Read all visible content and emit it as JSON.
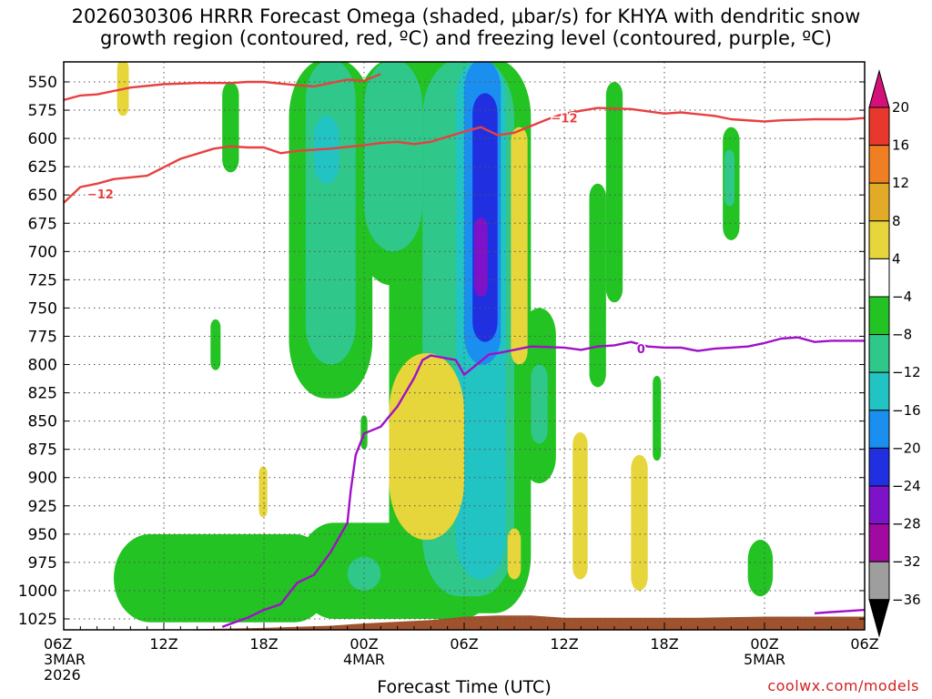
{
  "title": {
    "line1": "2026030306 HRRR Forecast Omega (shaded, μbar/s) for KHYA with dendritic snow",
    "line2": "growth region (contoured, red, ºC) and freezing level (contoured, purple, ºC)"
  },
  "credit": "coolwx.com/models",
  "chart_data": {
    "type": "heatmap",
    "xlabel": "Forecast Time (UTC)",
    "ylabel": "",
    "xlim": [
      0,
      48
    ],
    "ylim": [
      1035,
      530
    ],
    "y_axis": "pressure (hPa), inverted",
    "grid": true,
    "x_ticks": [
      {
        "hour": 0,
        "lines": [
          "06Z",
          "3MAR",
          "2026"
        ]
      },
      {
        "hour": 6,
        "lines": [
          "12Z"
        ]
      },
      {
        "hour": 12,
        "lines": [
          "18Z"
        ]
      },
      {
        "hour": 18,
        "lines": [
          "00Z",
          "4MAR"
        ]
      },
      {
        "hour": 24,
        "lines": [
          "06Z"
        ]
      },
      {
        "hour": 30,
        "lines": [
          "12Z"
        ]
      },
      {
        "hour": 36,
        "lines": [
          "18Z"
        ]
      },
      {
        "hour": 42,
        "lines": [
          "00Z",
          "5MAR"
        ]
      },
      {
        "hour": 48,
        "lines": [
          "06Z"
        ]
      }
    ],
    "y_ticks": [
      550,
      575,
      600,
      625,
      650,
      675,
      700,
      725,
      750,
      775,
      800,
      825,
      850,
      875,
      900,
      925,
      950,
      975,
      1000,
      1025
    ],
    "colorbar": {
      "labels": [
        "20",
        "16",
        "12",
        "8",
        "4",
        "−4",
        "−8",
        "−12",
        "−16",
        "−20",
        "−24",
        "−28",
        "−32",
        "−36"
      ],
      "levels": [
        20,
        16,
        12,
        8,
        4,
        -4,
        -8,
        -12,
        -16,
        -20,
        -24,
        -28,
        -32,
        -36
      ],
      "colors": [
        "#d4107a",
        "#e8382e",
        "#ef7f22",
        "#e2ab27",
        "#e6d53b",
        "#ffffff",
        "#22c322",
        "#2fc78a",
        "#22c3c3",
        "#1a8ff0",
        "#2030e0",
        "#7e12c8",
        "#a00aa0",
        "#9e9e9e",
        "#000000"
      ]
    },
    "contours": [
      {
        "name": "−12",
        "color": "#e84040",
        "lines": [
          [
            [
              0,
              657
            ],
            [
              1,
              643
            ],
            [
              2,
              640
            ],
            [
              3,
              636
            ],
            [
              5,
              633
            ],
            [
              7,
              618
            ],
            [
              9,
              609
            ],
            [
              10,
              607
            ],
            [
              11,
              608
            ],
            [
              12,
              608
            ],
            [
              13,
              613
            ],
            [
              14,
              611
            ],
            [
              16,
              609
            ],
            [
              18,
              606
            ],
            [
              19,
              604
            ],
            [
              20,
              603
            ],
            [
              21,
              605
            ],
            [
              22,
              603
            ],
            [
              24,
              594
            ],
            [
              25,
              590
            ],
            [
              26,
              597
            ],
            [
              27,
              595
            ],
            [
              29,
              583
            ],
            [
              30,
              578
            ],
            [
              32,
              573
            ],
            [
              34,
              574
            ],
            [
              36,
              578
            ],
            [
              37,
              577
            ],
            [
              39,
              580
            ],
            [
              40,
              583
            ],
            [
              42,
              585
            ],
            [
              43,
              584
            ],
            [
              45,
              583
            ],
            [
              47,
              583
            ],
            [
              48,
              582
            ]
          ],
          [
            [
              0,
              566
            ],
            [
              1,
              562
            ],
            [
              2,
              561
            ],
            [
              4,
              555
            ],
            [
              6,
              552
            ],
            [
              8,
              551
            ],
            [
              10,
              551
            ],
            [
              11,
              550
            ],
            [
              12,
              550
            ],
            [
              14,
              553
            ],
            [
              15,
              554
            ],
            [
              16,
              551
            ],
            [
              17,
              548
            ],
            [
              18,
              549
            ],
            [
              19,
              543
            ]
          ]
        ],
        "labels": [
          {
            "hour": 2.2,
            "p": 649,
            "text": "−12"
          },
          {
            "hour": 30,
            "p": 582,
            "text": "−12"
          }
        ]
      },
      {
        "name": "0",
        "color": "#a010c8",
        "lines": [
          [
            [
              9.5,
              1032
            ],
            [
              11,
              1024
            ],
            [
              12,
              1017
            ],
            [
              13,
              1012
            ],
            [
              14,
              993
            ],
            [
              15,
              986
            ],
            [
              16,
              966
            ],
            [
              17,
              940
            ],
            [
              17.2,
              912
            ],
            [
              17.5,
              880
            ],
            [
              18,
              861
            ],
            [
              19,
              855
            ],
            [
              20,
              837
            ],
            [
              21,
              812
            ],
            [
              21.5,
              796
            ],
            [
              22,
              792
            ],
            [
              23.5,
              796
            ],
            [
              24,
              809
            ],
            [
              25,
              797
            ],
            [
              25.5,
              791
            ],
            [
              26,
              790
            ],
            [
              27,
              787
            ],
            [
              28,
              784
            ],
            [
              30,
              785
            ],
            [
              31,
              787
            ],
            [
              32,
              784
            ],
            [
              33,
              783
            ],
            [
              34,
              780
            ],
            [
              35,
              784
            ],
            [
              36,
              785
            ],
            [
              37,
              785
            ],
            [
              38,
              788
            ],
            [
              39,
              786
            ],
            [
              40,
              785
            ],
            [
              41,
              784
            ],
            [
              42,
              781
            ],
            [
              43,
              777
            ],
            [
              44,
              776
            ],
            [
              45,
              780
            ],
            [
              46,
              779
            ],
            [
              47,
              779
            ],
            [
              48,
              779
            ]
          ],
          [
            [
              45,
              1020
            ],
            [
              46,
              1019
            ],
            [
              47,
              1018
            ],
            [
              48,
              1017
            ]
          ]
        ],
        "labels": [
          {
            "hour": 34.6,
            "p": 786,
            "text": "0"
          }
        ]
      }
    ],
    "terrain_top_hPa": {
      "hour": [
        0,
        4,
        8,
        12,
        16,
        18,
        22,
        24,
        26,
        28,
        30,
        34,
        38,
        42,
        48
      ],
      "p": [
        1036,
        1036,
        1034,
        1033,
        1031,
        1029,
        1026,
        1023,
        1022,
        1022,
        1024,
        1024,
        1024,
        1023,
        1023
      ]
    },
    "regions": [
      {
        "color": "#22c322",
        "label": "-4 to -8",
        "t0": 13.5,
        "t1": 18.5,
        "pTop": 530,
        "pBot": 830
      },
      {
        "color": "#22c322",
        "label": "-4 to -8",
        "t0": 17.5,
        "t1": 22.5,
        "pTop": 530,
        "pBot": 730
      },
      {
        "color": "#22c322",
        "label": "-4 to -8",
        "t0": 19.5,
        "t1": 28,
        "pTop": 530,
        "pBot": 1020
      },
      {
        "color": "#22c322",
        "label": "-4 to -8",
        "t0": 3,
        "t1": 16,
        "pTop": 950,
        "pBot": 1028
      },
      {
        "color": "#22c322",
        "label": "-4 to -8",
        "t0": 14,
        "t1": 26,
        "pTop": 940,
        "pBot": 1025
      },
      {
        "color": "#22c322",
        "label": "-4 to -8",
        "t0": 27.5,
        "t1": 29.5,
        "pTop": 750,
        "pBot": 905
      },
      {
        "color": "#22c322",
        "label": "-4 to -8",
        "t0": 9.5,
        "t1": 10.5,
        "pTop": 550,
        "pBot": 630
      },
      {
        "color": "#22c322",
        "label": "-4 to -8",
        "t0": 32.5,
        "t1": 33.5,
        "pTop": 550,
        "pBot": 745
      },
      {
        "color": "#22c322",
        "label": "-4 to -8",
        "t0": 39.5,
        "t1": 40.5,
        "pTop": 590,
        "pBot": 690
      },
      {
        "color": "#22c322",
        "label": "-4 to -8",
        "t0": 31.5,
        "t1": 32.5,
        "pTop": 640,
        "pBot": 820
      },
      {
        "color": "#22c322",
        "label": "-4 to -8",
        "t0": 41,
        "t1": 42.5,
        "pTop": 955,
        "pBot": 1005
      },
      {
        "color": "#22c322",
        "label": "-4 to -8",
        "t0": 8.8,
        "t1": 9.4,
        "pTop": 760,
        "pBot": 805
      },
      {
        "color": "#22c322",
        "label": "-4 to -8",
        "t0": 17.8,
        "t1": 18.2,
        "pTop": 845,
        "pBot": 875
      },
      {
        "color": "#22c322",
        "label": "-4 to -8",
        "t0": 35.3,
        "t1": 35.8,
        "pTop": 810,
        "pBot": 885
      },
      {
        "color": "#2fc78a",
        "label": "-8 to -12",
        "t0": 14.5,
        "t1": 17.5,
        "pTop": 530,
        "pBot": 800
      },
      {
        "color": "#2fc78a",
        "label": "-8 to -12",
        "t0": 18,
        "t1": 21.5,
        "pTop": 530,
        "pBot": 700
      },
      {
        "color": "#2fc78a",
        "label": "-8 to -12",
        "t0": 21.5,
        "t1": 27,
        "pTop": 530,
        "pBot": 1005
      },
      {
        "color": "#2fc78a",
        "label": "-8 to -12",
        "t0": 28,
        "t1": 29,
        "pTop": 800,
        "pBot": 870
      },
      {
        "color": "#2fc78a",
        "label": "-8 to -12",
        "t0": 17,
        "t1": 19,
        "pTop": 970,
        "pBot": 1000
      },
      {
        "color": "#2fc78a",
        "label": "-8 to -12",
        "t0": 39.6,
        "t1": 40.2,
        "pTop": 610,
        "pBot": 660
      },
      {
        "color": "#22c3c3",
        "label": "-12 to -16",
        "t0": 23.5,
        "t1": 26.5,
        "pTop": 530,
        "pBot": 990
      },
      {
        "color": "#22c3c3",
        "label": "-12 to -16",
        "t0": 15,
        "t1": 16.5,
        "pTop": 580,
        "pBot": 640
      },
      {
        "color": "#1a8ff0",
        "label": "-16 to -20",
        "t0": 24,
        "t1": 26.2,
        "pTop": 530,
        "pBot": 800
      },
      {
        "color": "#2030e0",
        "label": "-20 to -24",
        "t0": 24.5,
        "t1": 26,
        "pTop": 560,
        "pBot": 780
      },
      {
        "color": "#7e12c8",
        "label": "-24 to -28",
        "t0": 24.6,
        "t1": 25.4,
        "pTop": 670,
        "pBot": 740
      },
      {
        "color": "#e6d53b",
        "label": "4 to 8",
        "t0": 19.5,
        "t1": 24,
        "pTop": 790,
        "pBot": 955
      },
      {
        "color": "#e6d53b",
        "label": "4 to 8",
        "t0": 26.8,
        "t1": 27.8,
        "pTop": 590,
        "pBot": 800
      },
      {
        "color": "#e6d53b",
        "label": "4 to 8",
        "t0": 3.2,
        "t1": 3.9,
        "pTop": 530,
        "pBot": 580
      },
      {
        "color": "#e6d53b",
        "label": "4 to 8",
        "t0": 11.7,
        "t1": 12.2,
        "pTop": 890,
        "pBot": 935
      },
      {
        "color": "#e6d53b",
        "label": "4 to 8",
        "t0": 26.6,
        "t1": 27.4,
        "pTop": 945,
        "pBot": 990
      },
      {
        "color": "#e6d53b",
        "label": "4 to 8",
        "t0": 30.5,
        "t1": 31.4,
        "pTop": 860,
        "pBot": 990
      },
      {
        "color": "#e6d53b",
        "label": "4 to 8",
        "t0": 34,
        "t1": 35,
        "pTop": 880,
        "pBot": 1000
      }
    ]
  }
}
